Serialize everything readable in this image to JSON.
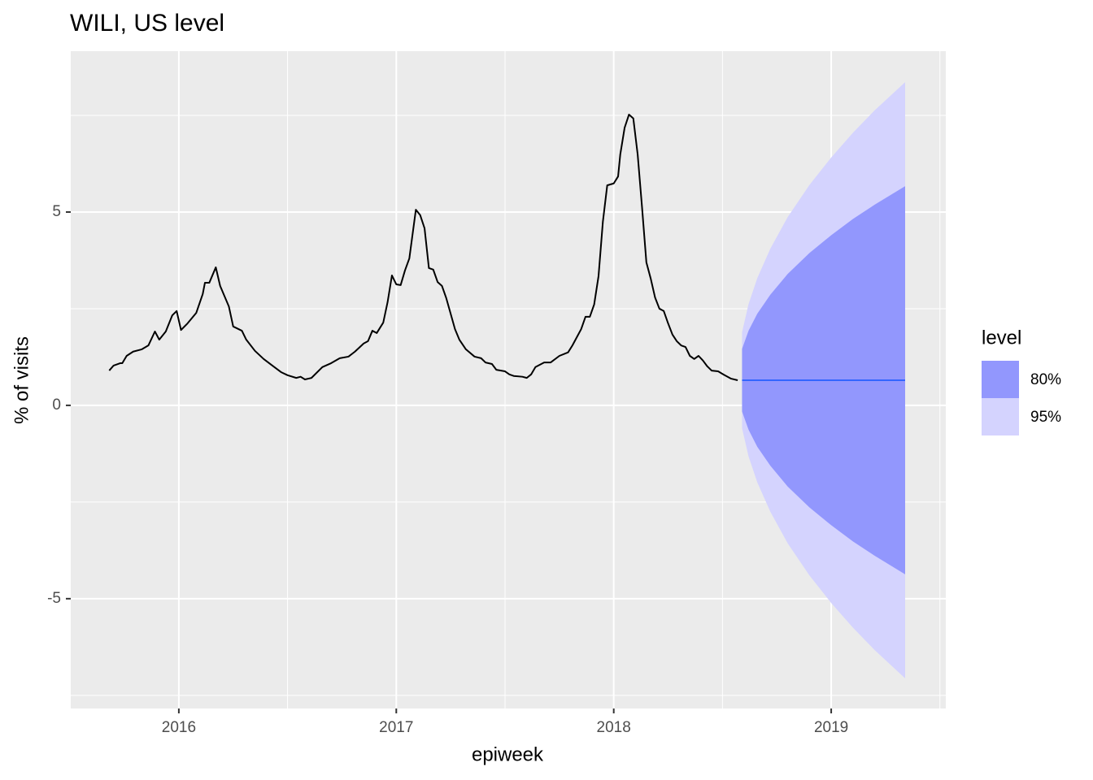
{
  "chart_data": {
    "type": "line",
    "title": "WILI, US level",
    "x_label": "epiweek",
    "y_label": "% of visits",
    "xlim": [
      2015.503,
      2019.527
    ],
    "ylim": [
      -7.84,
      9.16
    ],
    "xticks": [
      2016,
      2017,
      2018,
      2019
    ],
    "yticks": [
      -5,
      0,
      5
    ],
    "minor_xticks": [
      2015.5,
      2016.5,
      2017.5,
      2018.5,
      2019.5
    ],
    "minor_yticks": [
      -7.5,
      -2.5,
      2.5,
      7.5
    ],
    "grid": true,
    "series": [
      {
        "color": "#000000",
        "x": [
          2015.68,
          2015.7,
          2015.73,
          2015.74,
          2015.76,
          2015.79,
          2015.83,
          2015.86,
          2015.89,
          2015.91,
          2015.94,
          2015.97,
          2015.99,
          2016.01,
          2016.04,
          2016.08,
          2016.11,
          2016.12,
          2016.14,
          2016.17,
          2016.19,
          2016.23,
          2016.25,
          2016.29,
          2016.31,
          2016.35,
          2016.39,
          2016.43,
          2016.47,
          2016.5,
          2016.54,
          2016.56,
          2016.58,
          2016.61,
          2016.66,
          2016.7,
          2016.74,
          2016.78,
          2016.81,
          2016.85,
          2016.87,
          2016.89,
          2016.91,
          2016.94,
          2016.96,
          2016.98,
          2017.0,
          2017.02,
          2017.04,
          2017.06,
          2017.09,
          2017.11,
          2017.13,
          2017.15,
          2017.17,
          2017.19,
          2017.21,
          2017.23,
          2017.27,
          2017.29,
          2017.32,
          2017.36,
          2017.39,
          2017.41,
          2017.44,
          2017.46,
          2017.5,
          2017.52,
          2017.54,
          2017.58,
          2017.6,
          2017.62,
          2017.64,
          2017.68,
          2017.71,
          2017.75,
          2017.79,
          2017.81,
          2017.83,
          2017.85,
          2017.87,
          2017.89,
          2017.91,
          2017.93,
          2017.95,
          2017.97,
          2018.0,
          2018.02,
          2018.03,
          2018.05,
          2018.07,
          2018.09,
          2018.11,
          2018.13,
          2018.15,
          2018.17,
          2018.19,
          2018.21,
          2018.23,
          2018.25,
          2018.27,
          2018.29,
          2018.31,
          2018.33,
          2018.35,
          2018.37,
          2018.39,
          2018.41,
          2018.43,
          2018.45,
          2018.48,
          2018.51,
          2018.54,
          2018.57
        ],
        "values": [
          0.9,
          1.03,
          1.09,
          1.09,
          1.28,
          1.39,
          1.45,
          1.55,
          1.91,
          1.7,
          1.91,
          2.33,
          2.44,
          1.95,
          2.12,
          2.39,
          2.88,
          3.17,
          3.17,
          3.57,
          3.09,
          2.56,
          2.04,
          1.93,
          1.7,
          1.41,
          1.2,
          1.03,
          0.86,
          0.78,
          0.71,
          0.74,
          0.67,
          0.71,
          0.99,
          1.09,
          1.22,
          1.26,
          1.39,
          1.6,
          1.66,
          1.93,
          1.87,
          2.14,
          2.67,
          3.36,
          3.13,
          3.11,
          3.49,
          3.8,
          5.06,
          4.92,
          4.58,
          3.55,
          3.51,
          3.19,
          3.09,
          2.77,
          1.97,
          1.7,
          1.45,
          1.26,
          1.22,
          1.11,
          1.07,
          0.92,
          0.88,
          0.8,
          0.76,
          0.74,
          0.71,
          0.8,
          0.99,
          1.11,
          1.11,
          1.28,
          1.37,
          1.55,
          1.76,
          1.97,
          2.29,
          2.29,
          2.61,
          3.34,
          4.75,
          5.69,
          5.74,
          5.92,
          6.49,
          7.18,
          7.52,
          7.42,
          6.49,
          5.13,
          3.7,
          3.28,
          2.79,
          2.5,
          2.44,
          2.12,
          1.83,
          1.66,
          1.55,
          1.51,
          1.28,
          1.2,
          1.28,
          1.16,
          1.01,
          0.9,
          0.88,
          0.78,
          0.69,
          0.65
        ]
      }
    ],
    "forecast": {
      "color": "#3366ff",
      "x": [
        2018.59,
        2018.62,
        2018.66,
        2018.72,
        2018.8,
        2018.9,
        2019.0,
        2019.1,
        2019.2,
        2019.34
      ],
      "values": [
        0.65,
        0.65,
        0.65,
        0.65,
        0.65,
        0.65,
        0.65,
        0.65,
        0.65,
        0.65
      ],
      "bands": [
        {
          "name": "80%",
          "color": "#9297fd",
          "lower": [
            -0.16,
            -0.63,
            -1.07,
            -1.56,
            -2.1,
            -2.64,
            -3.1,
            -3.52,
            -3.89,
            -4.37
          ],
          "upper": [
            1.46,
            1.93,
            2.37,
            2.86,
            3.4,
            3.94,
            4.4,
            4.82,
            5.19,
            5.67
          ]
        },
        {
          "name": "95%",
          "color": "#d4d3fe",
          "lower": [
            -0.59,
            -1.32,
            -1.99,
            -2.75,
            -3.57,
            -4.4,
            -5.11,
            -5.75,
            -6.33,
            -7.06
          ],
          "upper": [
            1.89,
            2.62,
            3.29,
            4.05,
            4.87,
            5.7,
            6.41,
            7.05,
            7.63,
            8.36
          ]
        }
      ]
    },
    "legend_title": "level"
  }
}
